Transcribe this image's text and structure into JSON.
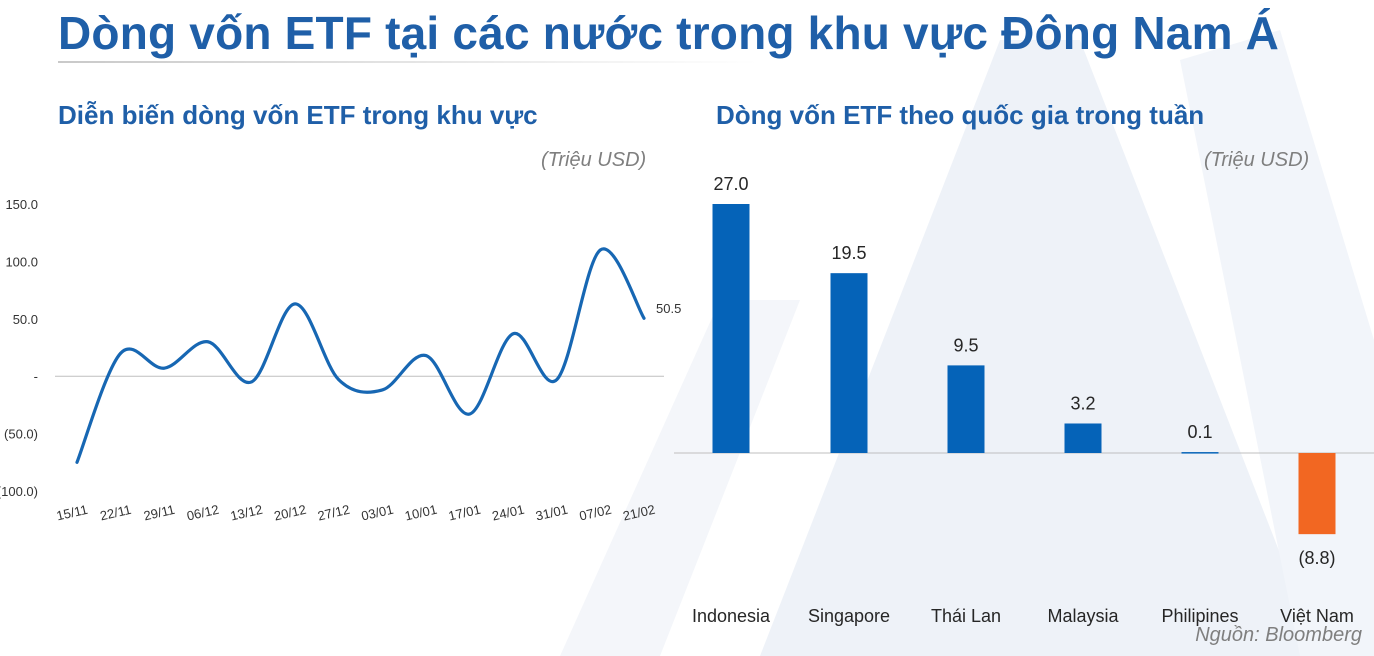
{
  "title": "Dòng vốn ETF tại các nước trong khu vực Đông Nam Á",
  "source": "Nguồn: Bloomberg",
  "colors": {
    "title": "#1f5fa8",
    "line": "#1767b3",
    "bar_positive": "#0563b8",
    "bar_negative": "#f26722",
    "muted": "#7f7f7f"
  },
  "chart_data": [
    {
      "type": "line",
      "title": "Diễn biến dòng vốn ETF trong khu vực",
      "unit": "(Triệu USD)",
      "x": [
        "15/11",
        "22/11",
        "29/11",
        "06/12",
        "13/12",
        "20/12",
        "27/12",
        "03/01",
        "10/01",
        "17/01",
        "24/01",
        "31/01",
        "07/02",
        "21/02"
      ],
      "y_tick_labels": [
        "150.0",
        "100.0",
        "50.0",
        "-",
        "(50.0)",
        "(100.0)"
      ],
      "y_ticks": [
        150,
        100,
        50,
        0,
        -50,
        -100
      ],
      "ylim": [
        -100,
        150
      ],
      "series": [
        {
          "values": [
            -75,
            20,
            7,
            30,
            -5,
            63,
            -3,
            -12,
            18,
            -33,
            37,
            -3,
            110,
            50.5
          ]
        }
      ],
      "end_label": "50.5",
      "grid": false
    },
    {
      "type": "bar",
      "title": "Dòng vốn ETF theo quốc gia trong tuần",
      "unit": "(Triệu USD)",
      "categories": [
        "Indonesia",
        "Singapore",
        "Thái Lan",
        "Malaysia",
        "Philipines",
        "Việt Nam"
      ],
      "values": [
        27.0,
        19.5,
        9.5,
        3.2,
        0.1,
        -8.8
      ],
      "value_labels": [
        "27.0",
        "19.5",
        "9.5",
        "3.2",
        "0.1",
        "(8.8)"
      ],
      "grid": false
    }
  ]
}
